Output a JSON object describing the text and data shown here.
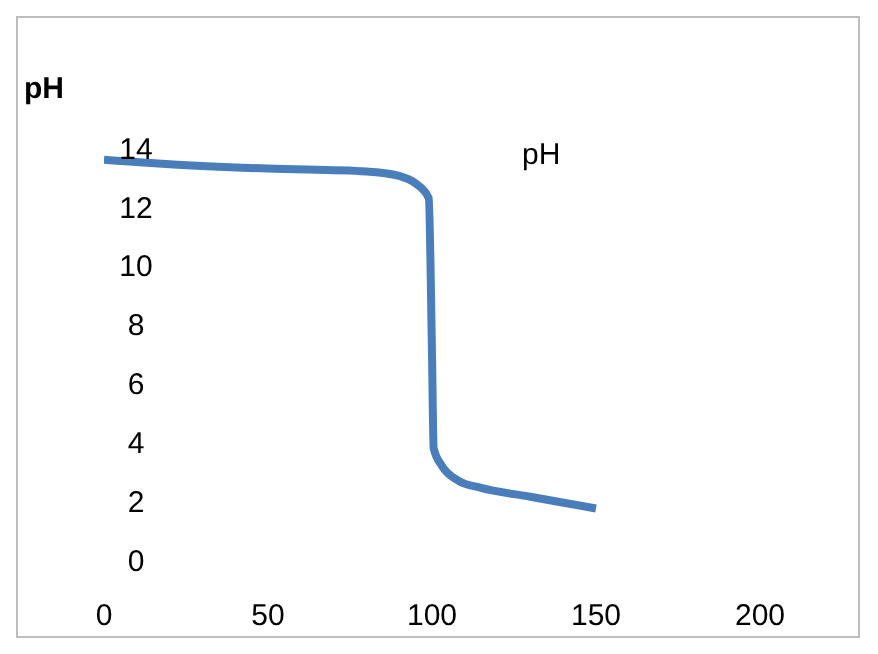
{
  "chart_data": {
    "type": "line",
    "ylabel": "pH",
    "annotations": [
      "pH"
    ],
    "x": [
      0,
      20,
      50,
      80,
      90,
      95,
      99,
      100,
      100.5,
      103,
      108,
      115,
      130,
      150
    ],
    "series": [
      {
        "color": "#4a7ebb",
        "values": [
          13.6,
          13.45,
          13.3,
          13.2,
          13.05,
          12.8,
          12.3,
          7,
          3.8,
          3.2,
          2.7,
          2.45,
          2.15,
          1.75
        ]
      }
    ],
    "xlim": [
      0,
      200
    ],
    "xticks": [
      0,
      50,
      100,
      150,
      200
    ],
    "ylim": [
      0,
      14
    ],
    "yticks": [
      0,
      2,
      4,
      6,
      8,
      10,
      12,
      14
    ],
    "grid": false,
    "legend": false,
    "marker": "none",
    "line_style": "solid"
  }
}
